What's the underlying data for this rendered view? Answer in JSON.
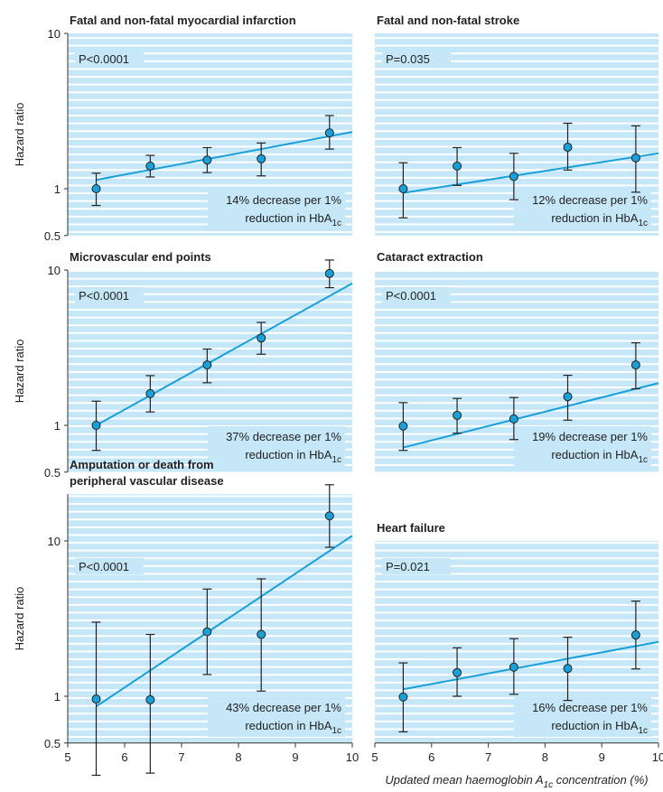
{
  "chart_data": [
    {
      "type": "scatter",
      "yscale": "log",
      "title": "Fatal and non-fatal myocardial infarction",
      "y_label": "Hazard ratio",
      "xlim": [
        5,
        10
      ],
      "ylim": [
        0.5,
        10
      ],
      "yticks": [
        0.5,
        1,
        10
      ],
      "color": "#1aa0d8",
      "x": [
        5.5,
        6.45,
        7.45,
        8.4,
        9.6
      ],
      "values": [
        1.0,
        1.4,
        1.53,
        1.56,
        2.29
      ],
      "lower": [
        0.78,
        1.19,
        1.27,
        1.21,
        1.8
      ],
      "upper": [
        1.26,
        1.64,
        1.84,
        1.97,
        2.96
      ],
      "fit": {
        "x": [
          5.5,
          10
        ],
        "values": [
          1.14,
          2.32
        ]
      },
      "p_value": "P<0.0001",
      "annotation": {
        "line1": "14% decrease per 1%",
        "line2": "reduction in HbA",
        "sub": "1c"
      }
    },
    {
      "type": "scatter",
      "yscale": "log",
      "title": "Fatal and non-fatal stroke",
      "xlim": [
        5,
        10
      ],
      "ylim": [
        0.5,
        10
      ],
      "color": "#1aa0d8",
      "x": [
        5.5,
        6.45,
        7.45,
        8.4,
        9.6
      ],
      "values": [
        1.0,
        1.4,
        1.2,
        1.85,
        1.58
      ],
      "lower": [
        0.65,
        1.05,
        0.85,
        1.32,
        0.95
      ],
      "upper": [
        1.47,
        1.84,
        1.69,
        2.64,
        2.54
      ],
      "fit": {
        "x": [
          5.5,
          10
        ],
        "values": [
          0.94,
          1.69
        ]
      },
      "p_value": "P=0.035",
      "annotation": {
        "line1": "12% decrease per 1%",
        "line2": "reduction in HbA",
        "sub": "1c"
      }
    },
    {
      "type": "scatter",
      "yscale": "log",
      "title": "Microvascular end points",
      "y_label": "Hazard ratio",
      "xlim": [
        5,
        10
      ],
      "ylim": [
        0.5,
        10
      ],
      "yticks": [
        0.5,
        1,
        10
      ],
      "color": "#1aa0d8",
      "x": [
        5.5,
        6.45,
        7.45,
        8.4,
        9.6
      ],
      "values": [
        1.0,
        1.6,
        2.45,
        3.65,
        9.5
      ],
      "lower": [
        0.69,
        1.22,
        1.88,
        2.87,
        7.7
      ],
      "upper": [
        1.43,
        2.09,
        3.1,
        4.6,
        11.6
      ],
      "fit": {
        "x": [
          5.5,
          10
        ],
        "values": [
          1.0,
          8.2
        ]
      },
      "p_value": "P<0.0001",
      "annotation": {
        "line1": "37% decrease per 1%",
        "line2": "reduction in HbA",
        "sub": "1c"
      }
    },
    {
      "type": "scatter",
      "yscale": "log",
      "title": "Cataract extraction",
      "xlim": [
        5,
        10
      ],
      "ylim": [
        0.5,
        10
      ],
      "color": "#1aa0d8",
      "x": [
        5.5,
        6.45,
        7.45,
        8.4,
        9.6
      ],
      "values": [
        0.99,
        1.16,
        1.1,
        1.53,
        2.45
      ],
      "lower": [
        0.69,
        0.89,
        0.81,
        1.08,
        1.72
      ],
      "upper": [
        1.4,
        1.49,
        1.51,
        2.1,
        3.4
      ],
      "fit": {
        "x": [
          5.5,
          10
        ],
        "values": [
          0.72,
          1.87
        ]
      },
      "p_value": "P<0.0001",
      "annotation": {
        "line1": "19% decrease per 1%",
        "line2": "reduction in HbA",
        "sub": "1c"
      }
    },
    {
      "type": "scatter",
      "yscale": "log",
      "title": [
        "Amputation or death from",
        "peripheral vascular disease"
      ],
      "y_label": "Hazard ratio",
      "xlim": [
        5,
        10
      ],
      "ylim": [
        0.5,
        20
      ],
      "yticks": [
        0.5,
        1,
        10
      ],
      "xticks": [
        5,
        6,
        7,
        8,
        9,
        10
      ],
      "color": "#1aa0d8",
      "x": [
        5.5,
        6.45,
        7.45,
        8.4,
        9.6
      ],
      "values": [
        0.96,
        0.95,
        2.6,
        2.5,
        14.5
      ],
      "lower": [
        0.31,
        0.32,
        1.38,
        1.08,
        9.1
      ],
      "upper": [
        3.0,
        2.5,
        4.9,
        5.7,
        23
      ],
      "fit": {
        "x": [
          5.5,
          10
        ],
        "values": [
          0.86,
          10.8
        ]
      },
      "p_value": "P<0.0001",
      "annotation": {
        "line1": "43% decrease per 1%",
        "line2": "reduction in HbA",
        "sub": "1c"
      }
    },
    {
      "type": "scatter",
      "yscale": "log",
      "title": "Heart failure",
      "xlim": [
        5,
        10
      ],
      "ylim": [
        0.5,
        10
      ],
      "xticks": [
        5,
        6,
        7,
        8,
        9,
        10
      ],
      "color": "#1aa0d8",
      "x": [
        5.5,
        6.45,
        7.45,
        8.4,
        9.6
      ],
      "values": [
        0.99,
        1.42,
        1.54,
        1.51,
        2.48
      ],
      "lower": [
        0.59,
        1.0,
        1.03,
        0.94,
        1.5
      ],
      "upper": [
        1.64,
        2.05,
        2.35,
        2.4,
        4.1
      ],
      "fit": {
        "x": [
          5.5,
          10
        ],
        "values": [
          1.11,
          2.24
        ]
      },
      "p_value": "P=0.021",
      "annotation": {
        "line1": "16% decrease per 1%",
        "line2": "reduction in HbA",
        "sub": "1c"
      },
      "x_label": {
        "text": "Updated mean haemoglobin A",
        "sub": "1c",
        "after": " concentration (%)"
      }
    }
  ]
}
